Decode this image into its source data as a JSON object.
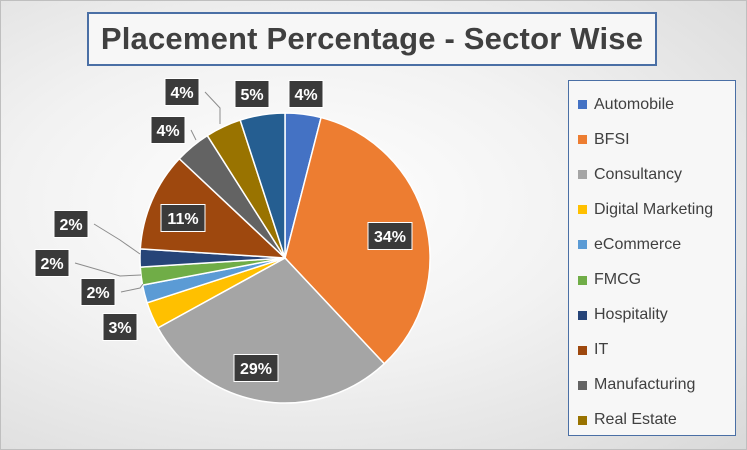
{
  "chart_data": {
    "type": "pie",
    "title": "Placement Percentage - Sector Wise",
    "legend_position": "right",
    "slices": [
      {
        "name": "Automobile",
        "value": 4,
        "label": "4%",
        "color": "#4472c4"
      },
      {
        "name": "BFSI",
        "value": 34,
        "label": "34%",
        "color": "#ed7d31"
      },
      {
        "name": "Consultancy",
        "value": 29,
        "label": "29%",
        "color": "#a5a5a5"
      },
      {
        "name": "Digital Marketing",
        "value": 3,
        "label": "3%",
        "color": "#ffc000"
      },
      {
        "name": "eCommerce",
        "value": 2,
        "label": "2%",
        "color": "#5b9bd5"
      },
      {
        "name": "FMCG",
        "value": 2,
        "label": "2%",
        "color": "#70ad47"
      },
      {
        "name": "Hospitality",
        "value": 2,
        "label": "2%",
        "color": "#264478"
      },
      {
        "name": "IT",
        "value": 11,
        "label": "11%",
        "color": "#9e480e"
      },
      {
        "name": "Manufacturing",
        "value": 4,
        "label": "4%",
        "color": "#636363"
      },
      {
        "name": "Real Estate",
        "value": 4,
        "label": "4%",
        "color": "#997300"
      },
      {
        "name": "",
        "value": 5,
        "label": "5%",
        "color": "#255e91"
      }
    ]
  }
}
